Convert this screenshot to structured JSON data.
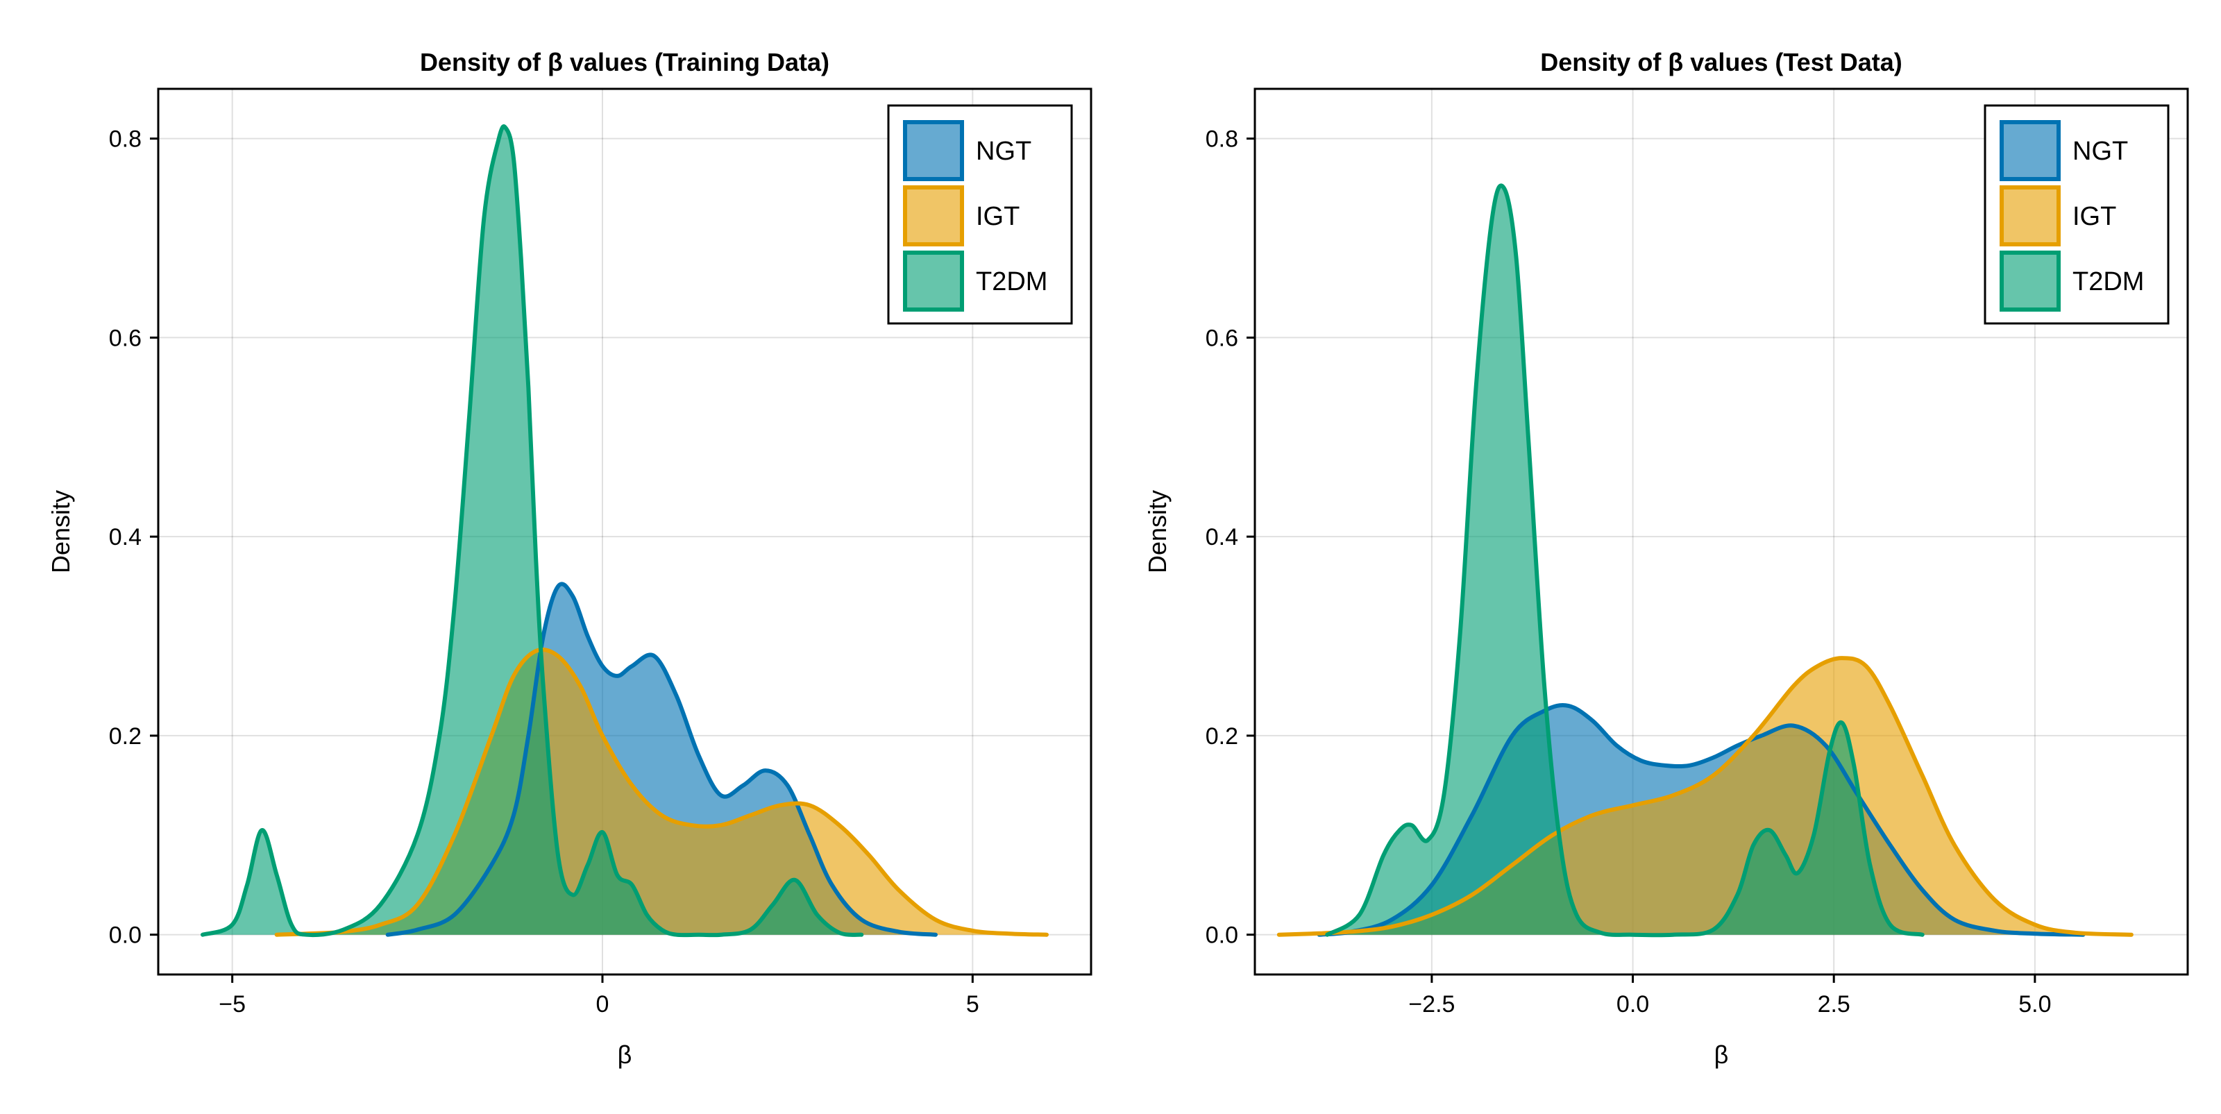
{
  "chart_data": [
    {
      "type": "area",
      "title": "Density of β values (Training Data)",
      "xlabel": "β",
      "ylabel": "Density",
      "xlim": [
        -6.0,
        6.6
      ],
      "ylim": [
        -0.04,
        0.85
      ],
      "x_ticks": [
        -5,
        0,
        5
      ],
      "x_tick_labels": [
        "−5",
        "0",
        "5"
      ],
      "y_ticks": [
        0.0,
        0.2,
        0.4,
        0.6,
        0.8
      ],
      "y_tick_labels": [
        "0.0",
        "0.2",
        "0.4",
        "0.6",
        "0.8"
      ],
      "grid": true,
      "legend_position": "top-right",
      "series": [
        {
          "name": "NGT",
          "x": [
            -2.9,
            -2.5,
            -2.0,
            -1.5,
            -1.2,
            -1.0,
            -0.8,
            -0.6,
            -0.4,
            -0.2,
            0.0,
            0.2,
            0.4,
            0.7,
            1.0,
            1.3,
            1.6,
            1.9,
            2.2,
            2.5,
            2.8,
            3.1,
            3.5,
            4.0,
            4.5
          ],
          "y": [
            0.0,
            0.005,
            0.02,
            0.07,
            0.12,
            0.2,
            0.3,
            0.35,
            0.34,
            0.3,
            0.27,
            0.26,
            0.27,
            0.28,
            0.24,
            0.18,
            0.14,
            0.15,
            0.165,
            0.15,
            0.1,
            0.05,
            0.015,
            0.003,
            0.0
          ]
        },
        {
          "name": "IGT",
          "x": [
            -4.4,
            -4.0,
            -3.5,
            -3.0,
            -2.5,
            -2.0,
            -1.5,
            -1.2,
            -0.9,
            -0.6,
            -0.3,
            0.0,
            0.4,
            0.8,
            1.2,
            1.6,
            2.0,
            2.4,
            2.8,
            3.2,
            3.6,
            4.0,
            4.5,
            5.0,
            5.5,
            6.0
          ],
          "y": [
            0.0,
            0.001,
            0.003,
            0.01,
            0.03,
            0.1,
            0.2,
            0.26,
            0.285,
            0.28,
            0.25,
            0.2,
            0.15,
            0.12,
            0.11,
            0.11,
            0.12,
            0.13,
            0.13,
            0.11,
            0.08,
            0.045,
            0.015,
            0.004,
            0.001,
            0.0
          ]
        },
        {
          "name": "T2DM",
          "x": [
            -5.4,
            -5.0,
            -4.8,
            -4.6,
            -4.4,
            -4.2,
            -4.0,
            -3.5,
            -3.0,
            -2.5,
            -2.2,
            -2.0,
            -1.8,
            -1.6,
            -1.4,
            -1.3,
            -1.2,
            -1.1,
            -1.0,
            -0.9,
            -0.8,
            -0.6,
            -0.4,
            -0.2,
            0.0,
            0.2,
            0.4,
            0.6,
            0.8,
            1.0,
            1.3,
            1.6,
            2.0,
            2.3,
            2.6,
            2.9,
            3.2,
            3.5
          ],
          "y": [
            0.0,
            0.01,
            0.05,
            0.105,
            0.06,
            0.01,
            0.0,
            0.005,
            0.03,
            0.1,
            0.2,
            0.33,
            0.52,
            0.72,
            0.8,
            0.81,
            0.78,
            0.68,
            0.55,
            0.38,
            0.25,
            0.08,
            0.04,
            0.07,
            0.103,
            0.06,
            0.05,
            0.02,
            0.005,
            0.0,
            0.0,
            0.0,
            0.005,
            0.03,
            0.055,
            0.02,
            0.002,
            0.0
          ]
        }
      ]
    },
    {
      "type": "area",
      "title": "Density of β values (Test Data)",
      "xlabel": "β",
      "ylabel": "Density",
      "xlim": [
        -4.7,
        6.9
      ],
      "ylim": [
        -0.04,
        0.85
      ],
      "x_ticks": [
        -2.5,
        0.0,
        2.5,
        5.0
      ],
      "x_tick_labels": [
        "−2.5",
        "0.0",
        "2.5",
        "5.0"
      ],
      "y_ticks": [
        0.0,
        0.2,
        0.4,
        0.6,
        0.8
      ],
      "y_tick_labels": [
        "0.0",
        "0.2",
        "0.4",
        "0.6",
        "0.8"
      ],
      "grid": true,
      "legend_position": "top-right",
      "series": [
        {
          "name": "NGT",
          "x": [
            -3.9,
            -3.5,
            -3.0,
            -2.5,
            -2.0,
            -1.5,
            -1.1,
            -0.8,
            -0.5,
            -0.2,
            0.1,
            0.4,
            0.7,
            1.0,
            1.3,
            1.6,
            2.0,
            2.4,
            2.8,
            3.2,
            3.6,
            4.0,
            4.5,
            5.0,
            5.6
          ],
          "y": [
            0.0,
            0.003,
            0.015,
            0.05,
            0.12,
            0.2,
            0.225,
            0.23,
            0.215,
            0.19,
            0.175,
            0.17,
            0.17,
            0.178,
            0.19,
            0.2,
            0.21,
            0.19,
            0.14,
            0.09,
            0.045,
            0.015,
            0.004,
            0.001,
            0.0
          ]
        },
        {
          "name": "IGT",
          "x": [
            -4.4,
            -4.0,
            -3.5,
            -3.0,
            -2.5,
            -2.0,
            -1.5,
            -1.0,
            -0.5,
            0.0,
            0.5,
            1.0,
            1.5,
            2.0,
            2.3,
            2.6,
            2.9,
            3.2,
            3.6,
            4.0,
            4.5,
            5.0,
            5.5,
            6.2
          ],
          "y": [
            0.0,
            0.001,
            0.003,
            0.008,
            0.02,
            0.04,
            0.07,
            0.1,
            0.12,
            0.13,
            0.14,
            0.16,
            0.2,
            0.25,
            0.27,
            0.278,
            0.27,
            0.23,
            0.16,
            0.09,
            0.035,
            0.01,
            0.002,
            0.0
          ]
        },
        {
          "name": "T2DM",
          "x": [
            -3.8,
            -3.4,
            -3.1,
            -2.9,
            -2.75,
            -2.55,
            -2.35,
            -2.15,
            -1.95,
            -1.75,
            -1.6,
            -1.45,
            -1.3,
            -1.1,
            -0.9,
            -0.7,
            -0.4,
            0.0,
            0.5,
            1.0,
            1.3,
            1.5,
            1.7,
            1.9,
            2.05,
            2.25,
            2.45,
            2.6,
            2.75,
            2.95,
            3.2,
            3.6
          ],
          "y": [
            0.0,
            0.02,
            0.08,
            0.105,
            0.11,
            0.095,
            0.14,
            0.3,
            0.55,
            0.72,
            0.75,
            0.68,
            0.5,
            0.25,
            0.09,
            0.02,
            0.002,
            0.0,
            0.0,
            0.005,
            0.04,
            0.09,
            0.105,
            0.08,
            0.062,
            0.1,
            0.185,
            0.213,
            0.17,
            0.07,
            0.01,
            0.0
          ]
        }
      ]
    }
  ],
  "series_colors": {
    "NGT": "#0072B2",
    "IGT": "#E69F00",
    "T2DM": "#009E73"
  }
}
